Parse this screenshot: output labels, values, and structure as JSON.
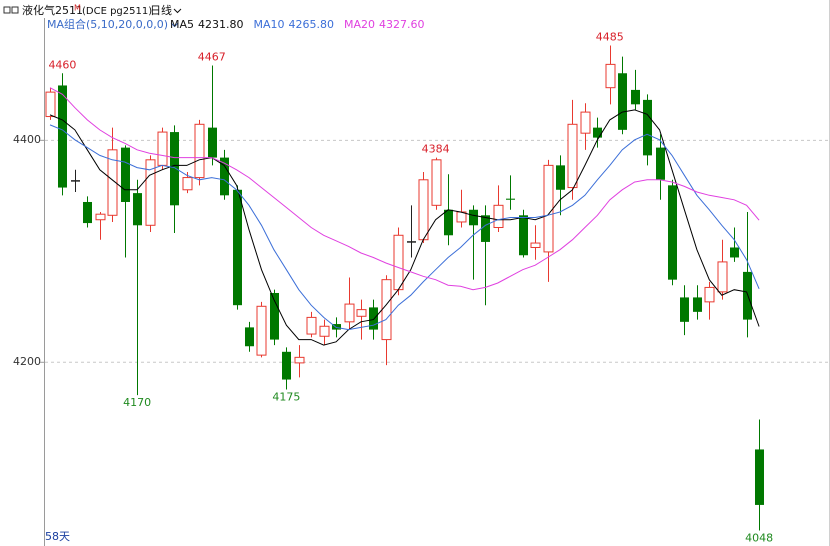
{
  "chart_data": {
    "type": "candlestick",
    "title": "液化气2511",
    "title_mark": "M",
    "code": "(DCE pg2511)",
    "period": "日线",
    "indicator": "MA组合(5,10,20,0,0,0)",
    "footer": "58天",
    "up_color": "#e8392f",
    "down_color": "#007800",
    "flat_color": "#222222",
    "ylim": [
      4034,
      4517
    ],
    "yticks": [
      4200,
      4400
    ],
    "grid": true,
    "open": [
      4421,
      4449,
      4363,
      4344,
      4328,
      4332,
      4393,
      4352,
      4323,
      4377,
      4407,
      4355,
      4366,
      4411,
      4384,
      4355,
      4231,
      4206,
      4262,
      4209,
      4199,
      4225,
      4223,
      4234,
      4236,
      4241,
      4249,
      4220,
      4265,
      4308,
      4310,
      4341,
      4337,
      4326,
      4337,
      4332,
      4321,
      4347,
      4332,
      4303,
      4299,
      4377,
      4357,
      4406,
      4411,
      4447,
      4460,
      4445,
      4436,
      4393,
      4359,
      4258,
      4258,
      4254,
      4263,
      4303,
      4281,
      4121
    ],
    "high": [
      4447,
      4460,
      4373,
      4349,
      4335,
      4411,
      4395,
      4364,
      4386,
      4411,
      4413,
      4371,
      4418,
      4467,
      4391,
      4359,
      4236,
      4254,
      4265,
      4213,
      4215,
      4245,
      4238,
      4240,
      4276,
      4256,
      4256,
      4278,
      4321,
      4341,
      4371,
      4384,
      4369,
      4355,
      4341,
      4341,
      4359,
      4368,
      4337,
      4323,
      4382,
      4386,
      4436,
      4433,
      4420,
      4485,
      4475,
      4463,
      4441,
      4405,
      4364,
      4269,
      4269,
      4272,
      4310,
      4321,
      4335,
      4148
    ],
    "low": [
      4418,
      4350,
      4353,
      4321,
      4310,
      4326,
      4294,
      4170,
      4317,
      4373,
      4316,
      4352,
      4359,
      4377,
      4346,
      4247,
      4209,
      4204,
      4215,
      4175,
      4186,
      4222,
      4215,
      4222,
      4229,
      4220,
      4220,
      4197,
      4260,
      4294,
      4307,
      4337,
      4305,
      4321,
      4274,
      4251,
      4317,
      4337,
      4294,
      4292,
      4272,
      4332,
      4346,
      4391,
      4393,
      4432,
      4405,
      4427,
      4377,
      4346,
      4269,
      4224,
      4238,
      4238,
      4256,
      4290,
      4222,
      4048
    ],
    "close": [
      4443,
      4357,
      4363,
      4325,
      4333,
      4391,
      4344,
      4323,
      4382,
      4407,
      4341,
      4366,
      4414,
      4384,
      4350,
      4251,
      4214,
      4250,
      4220,
      4184,
      4204,
      4240,
      4232,
      4229,
      4252,
      4247,
      4229,
      4274,
      4314,
      4308,
      4364,
      4382,
      4314,
      4335,
      4323,
      4308,
      4341,
      4346,
      4296,
      4307,
      4377,
      4355,
      4414,
      4425,
      4402,
      4468,
      4409,
      4432,
      4386,
      4364,
      4274,
      4236,
      4245,
      4267,
      4290,
      4294,
      4238,
      4071
    ],
    "annotations": [
      4460,
      4467,
      4170,
      4175,
      4384,
      4485,
      4048
    ],
    "series": [
      {
        "name": "MA5",
        "color": "#000000",
        "value_label": "4231.80",
        "values": [
          4422.5,
          4418,
          4409,
          4391,
          4373,
          4364,
          4355,
          4355,
          4368,
          4373,
          4377,
          4377,
          4382,
          4384,
          4377,
          4359,
          4319,
          4283,
          4256,
          4233,
          4220,
          4220,
          4215,
          4218,
          4229,
          4236,
          4238,
          4251,
          4265,
          4283,
          4310,
          4328,
          4337,
          4335,
          4332,
          4330,
          4328,
          4328,
          4330,
          4328,
          4332,
          4346,
          4355,
          4377,
          4400,
          4418,
          4425,
          4427,
          4423,
          4409,
          4373,
          4337,
          4301,
          4274,
          4260,
          4265,
          4263,
          4231.8
        ]
      },
      {
        "name": "MA10",
        "color": "#3c6fd8",
        "value_label": "4265.80",
        "values": [
          4413.5,
          4409,
          4400,
          4393,
          4386,
          4382,
          4380,
          4375,
          4373,
          4377,
          4375,
          4368,
          4364,
          4366,
          4364,
          4355,
          4341,
          4323,
          4301,
          4283,
          4265,
          4251,
          4240,
          4231,
          4229,
          4231,
          4233,
          4238,
          4251,
          4260,
          4272,
          4283,
          4294,
          4303,
          4314,
          4323,
          4328,
          4330,
          4330,
          4330,
          4332,
          4335,
          4341,
          4350,
          4364,
          4377,
          4391,
          4400,
          4405,
          4400,
          4386,
          4368,
          4350,
          4337,
          4323,
          4310,
          4292,
          4265.8
        ]
      },
      {
        "name": "MA20",
        "color": "#e040e0",
        "value_label": "4327.60",
        "values": [
          4447,
          4441,
          4429,
          4418,
          4409,
          4402,
          4397,
          4391,
          4388,
          4386,
          4384,
          4384,
          4384,
          4384,
          4379,
          4373,
          4366,
          4357,
          4348,
          4339,
          4330,
          4321,
          4314,
          4309,
          4304,
          4298,
          4294,
          4289,
          4285,
          4281,
          4277,
          4274,
          4269,
          4268,
          4265,
          4267,
          4271,
          4277,
          4283,
          4287,
          4294,
          4301,
          4310,
          4321,
          4332,
          4346,
          4355,
          4362,
          4364,
          4364,
          4362,
          4358,
          4353,
          4350,
          4348,
          4346,
          4341,
          4327.6
        ]
      }
    ]
  }
}
